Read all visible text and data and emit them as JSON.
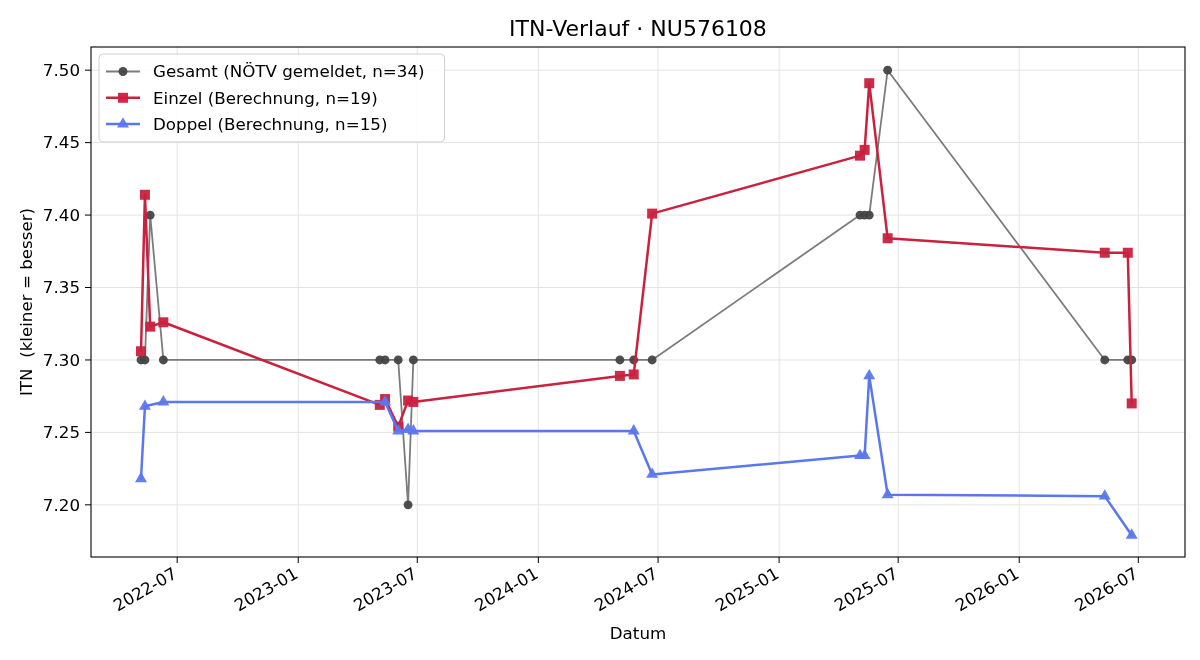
{
  "chart_data": {
    "type": "line",
    "title": "ITN-Verlauf · NU576108",
    "xlabel": "Datum",
    "ylabel": "ITN  (kleiner = besser)",
    "xlim": [
      "2022-02-20",
      "2026-09-10"
    ],
    "xticks": [
      "2022-07",
      "2023-01",
      "2023-07",
      "2024-01",
      "2024-07",
      "2025-01",
      "2025-07",
      "2026-01",
      "2026-07"
    ],
    "ylim": [
      7.164,
      7.516
    ],
    "yticks": [
      {
        "value": 7.2,
        "label": "7.20"
      },
      7.25,
      {
        "value": 7.3,
        "label": "7.30"
      },
      7.35,
      {
        "value": 7.4,
        "label": "7.40"
      },
      7.45,
      {
        "value": 7.5,
        "label": "7.50"
      }
    ],
    "grid": true,
    "legend": "top left",
    "series": [
      {
        "name": "Gesamt (NÖTV gemeldet, n=34)",
        "color": "#444444",
        "marker": "circle",
        "x": [
          "2022-05-07",
          "2022-05-13",
          "2022-05-21",
          "2022-06-10",
          "2023-05-05",
          "2023-05-13",
          "2023-06-02",
          "2023-06-17",
          "2023-06-25",
          "2024-05-04",
          "2024-05-25",
          "2024-06-22",
          "2025-05-04",
          "2025-05-11",
          "2025-05-18",
          "2025-06-15",
          "2026-05-11",
          "2026-06-15",
          "2026-06-21"
        ],
        "values": [
          7.3,
          7.3,
          7.4,
          7.3,
          7.3,
          7.3,
          7.3,
          7.2,
          7.3,
          7.3,
          7.3,
          7.3,
          7.4,
          7.4,
          7.4,
          7.5,
          7.3,
          7.3,
          7.3
        ]
      },
      {
        "name": "Einzel (Berechnung, n=19)",
        "color": "#c9213e",
        "marker": "square",
        "x": [
          "2022-05-07",
          "2022-05-13",
          "2022-05-21",
          "2022-06-10",
          "2023-05-05",
          "2023-05-13",
          "2023-06-02",
          "2023-06-17",
          "2023-06-25",
          "2024-05-04",
          "2024-05-25",
          "2024-06-22",
          "2025-05-04",
          "2025-05-11",
          "2025-05-18",
          "2025-06-15",
          "2026-05-11",
          "2026-06-15",
          "2026-06-21"
        ],
        "values": [
          7.306,
          7.414,
          7.323,
          7.326,
          7.269,
          7.273,
          7.254,
          7.272,
          7.271,
          7.289,
          7.29,
          7.401,
          7.441,
          7.445,
          7.491,
          7.384,
          7.374,
          7.374,
          7.27
        ]
      },
      {
        "name": "Doppel (Berechnung, n=15)",
        "color": "#5b77ee",
        "marker": "triangle",
        "x": [
          "2022-05-07",
          "2022-05-13",
          "2022-06-10",
          "2023-05-13",
          "2023-06-02",
          "2023-06-17",
          "2023-06-25",
          "2024-05-25",
          "2024-06-22",
          "2025-05-04",
          "2025-05-11",
          "2025-05-18",
          "2025-06-15",
          "2026-05-11",
          "2026-06-21"
        ],
        "values": [
          7.218,
          7.268,
          7.271,
          7.271,
          7.251,
          7.252,
          7.251,
          7.251,
          7.221,
          7.234,
          7.234,
          7.289,
          7.207,
          7.206,
          7.179
        ]
      }
    ]
  }
}
